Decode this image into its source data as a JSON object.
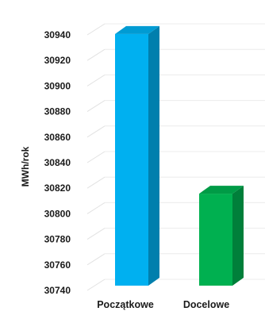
{
  "chart_data": {
    "type": "bar",
    "title": "",
    "xlabel": "",
    "ylabel": "MWh/rok",
    "categories": [
      "Początkowe",
      "Docelowe"
    ],
    "values": [
      30937,
      30812
    ],
    "colors": [
      "#00b0f0",
      "#00b050"
    ],
    "ylim": [
      30740,
      30940
    ],
    "yticks": [
      30740,
      30760,
      30780,
      30800,
      30820,
      30840,
      30860,
      30880,
      30900,
      30920,
      30940
    ],
    "grid": true,
    "style": "3d"
  }
}
